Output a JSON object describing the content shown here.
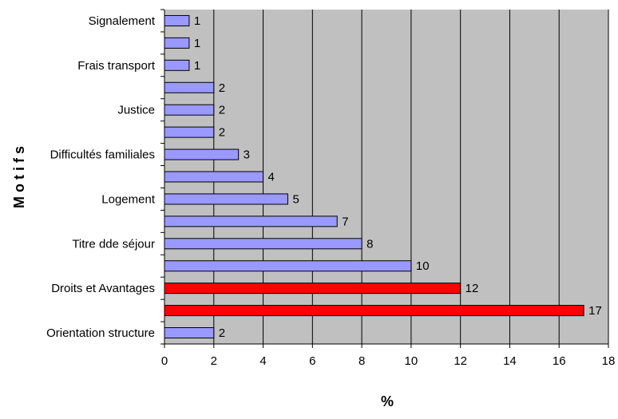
{
  "chart_data": {
    "type": "bar",
    "orientation": "horizontal",
    "categories": [
      "Orientation structure",
      "",
      "Droits et Avantages",
      "",
      "Titre dde séjour",
      "",
      "Logement",
      "",
      "Difficultés familiales",
      "",
      "Justice",
      "",
      "Frais transport",
      "",
      "Signalement"
    ],
    "values": [
      2,
      17,
      12,
      10,
      8,
      7,
      5,
      4,
      3,
      2,
      2,
      2,
      1,
      1,
      1
    ],
    "data_labels": [
      "2",
      "17",
      "12",
      "10",
      "8",
      "7",
      "5",
      "4",
      "3",
      "2",
      "2",
      "2",
      "1",
      "1",
      "1"
    ],
    "highlighted": [
      false,
      true,
      true,
      false,
      false,
      false,
      false,
      false,
      false,
      false,
      false,
      false,
      false,
      false,
      false
    ],
    "xlim": [
      0,
      18
    ],
    "xticks": [
      "0",
      "2",
      "4",
      "6",
      "8",
      "10",
      "12",
      "14",
      "16",
      "18"
    ],
    "xlabel": "%",
    "ylabel": "M o t i f s",
    "grid": "vertical",
    "legend": "none",
    "colors": {
      "plot_background": "#c0c0c0",
      "bar_default": "#9999ff",
      "bar_highlight": "#ff0000",
      "bar_outline": "#000000",
      "gridline": "#000000"
    }
  }
}
